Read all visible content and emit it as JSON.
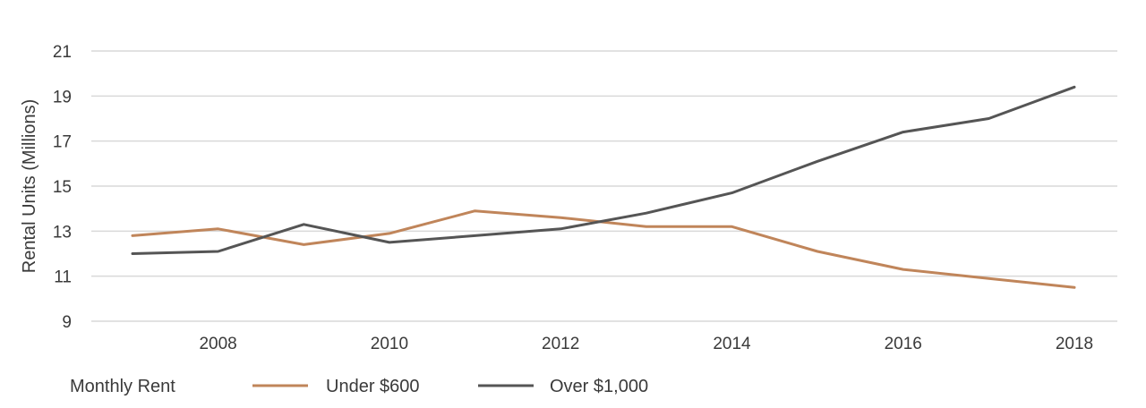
{
  "chart_data": {
    "type": "line",
    "title": "",
    "xlabel": "",
    "ylabel": "Rental Units (Millions)",
    "x": [
      2007,
      2008,
      2009,
      2010,
      2011,
      2012,
      2013,
      2014,
      2015,
      2016,
      2017,
      2018
    ],
    "x_ticks": [
      "2008",
      "2010",
      "2012",
      "2014",
      "2016",
      "2018"
    ],
    "y_ticks": [
      "9",
      "11",
      "13",
      "15",
      "17",
      "19",
      "21"
    ],
    "ylim": [
      9,
      21
    ],
    "xlim": [
      2007,
      2018
    ],
    "grid": "horizontal",
    "legend_position": "bottom-left",
    "legend_title": "Monthly Rent",
    "series": [
      {
        "name": "Under $600",
        "color": "#c0855a",
        "values": [
          12.8,
          13.1,
          12.4,
          12.9,
          13.9,
          13.6,
          13.2,
          13.2,
          12.1,
          11.3,
          10.9,
          10.5
        ]
      },
      {
        "name": "Over $1,000",
        "color": "#555555",
        "values": [
          12.0,
          12.1,
          13.3,
          12.5,
          12.8,
          13.1,
          13.8,
          14.7,
          16.1,
          17.4,
          18.0,
          19.4
        ]
      }
    ]
  }
}
